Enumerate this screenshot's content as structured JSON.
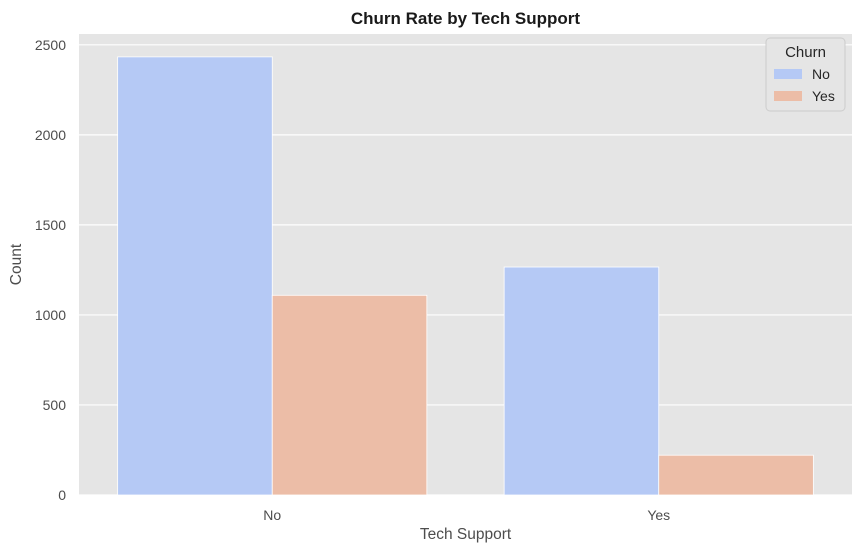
{
  "chart_data": {
    "type": "bar",
    "title": "Churn Rate by Tech Support",
    "xlabel": "Tech Support",
    "ylabel": "Count",
    "categories": [
      "No",
      "Yes"
    ],
    "series": [
      {
        "name": "No",
        "values": [
          2433,
          1266
        ],
        "color": "#b5c9f5"
      },
      {
        "name": "Yes",
        "values": [
          1109,
          221
        ],
        "color": "#ecbda7"
      }
    ],
    "ylim": [
      0,
      2560
    ],
    "yticks": [
      0,
      500,
      1000,
      1500,
      2000,
      2500
    ],
    "grid": true,
    "legend": {
      "title": "Churn",
      "placement": "top-right"
    },
    "background_color": "#e5e5e5",
    "grid_color": "#ffffff"
  }
}
